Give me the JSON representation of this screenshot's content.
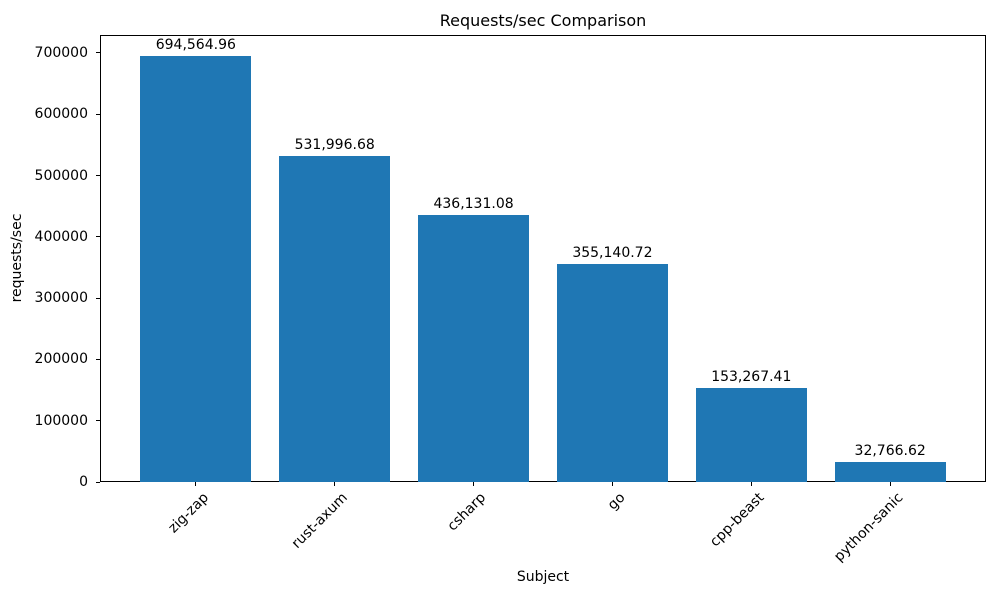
{
  "chart_data": {
    "type": "bar",
    "title": "Requests/sec Comparison",
    "xlabel": "Subject",
    "ylabel": "requests/sec",
    "categories": [
      "zig-zap",
      "rust-axum",
      "csharp",
      "go",
      "cpp-beast",
      "python-sanic"
    ],
    "values": [
      694564.96,
      531996.68,
      436131.08,
      355140.72,
      153267.41,
      32766.62
    ],
    "value_labels": [
      "694,564.96",
      "531,996.68",
      "436,131.08",
      "355,140.72",
      "153,267.41",
      "32,766.62"
    ],
    "ylim": [
      0,
      729293
    ],
    "yticks": [
      0,
      100000,
      200000,
      300000,
      400000,
      500000,
      600000,
      700000
    ],
    "ytick_labels": [
      "0",
      "100000",
      "200000",
      "300000",
      "400000",
      "500000",
      "600000",
      "700000"
    ],
    "bar_color": "#1f77b4",
    "x_tick_rotation": 45,
    "grid": false,
    "legend_position": "none"
  }
}
